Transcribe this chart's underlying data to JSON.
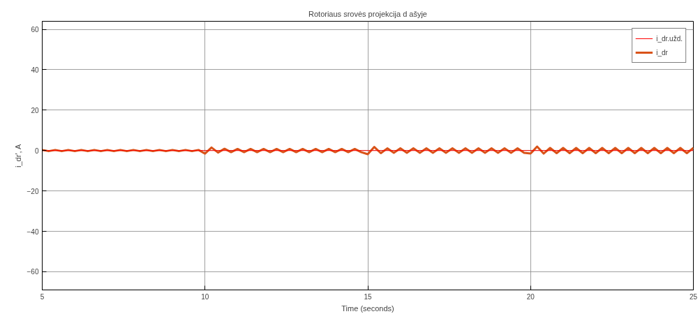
{
  "chart_data": {
    "type": "line",
    "title": "Rotoriaus srovės projekcija d ašyje",
    "xlabel": "Time (seconds)",
    "ylabel": "i_dr', A",
    "xlim": [
      5,
      25
    ],
    "xticks": [
      5,
      10,
      15,
      20,
      25
    ],
    "ylim": [
      -69,
      64
    ],
    "yticks": [
      -60,
      -40,
      -20,
      0,
      20,
      40,
      60
    ],
    "grid": true,
    "legend": "top right",
    "x": [
      5.0,
      5.2,
      5.4,
      5.6,
      5.8,
      6.0,
      6.2,
      6.4,
      6.6,
      6.8,
      7.0,
      7.2,
      7.4,
      7.6,
      7.8,
      8.0,
      8.2,
      8.4,
      8.6,
      8.8,
      9.0,
      9.2,
      9.4,
      9.6,
      9.8,
      10.0,
      10.2,
      10.4,
      10.6,
      10.8,
      11.0,
      11.2,
      11.4,
      11.6,
      11.8,
      12.0,
      12.2,
      12.4,
      12.6,
      12.8,
      13.0,
      13.2,
      13.4,
      13.6,
      13.8,
      14.0,
      14.2,
      14.4,
      14.6,
      14.8,
      15.0,
      15.2,
      15.4,
      15.6,
      15.8,
      16.0,
      16.2,
      16.4,
      16.6,
      16.8,
      17.0,
      17.2,
      17.4,
      17.6,
      17.8,
      18.0,
      18.2,
      18.4,
      18.6,
      18.8,
      19.0,
      19.2,
      19.4,
      19.6,
      19.8,
      20.0,
      20.2,
      20.4,
      20.6,
      20.8,
      21.0,
      21.2,
      21.4,
      21.6,
      21.8,
      22.0,
      22.2,
      22.4,
      22.6,
      22.8,
      23.0,
      23.2,
      23.4,
      23.6,
      23.8,
      24.0,
      24.2,
      24.4,
      24.6,
      24.8,
      25.0
    ],
    "series": [
      {
        "name": "i_dr",
        "color": "#d95319",
        "values": [
          0.3,
          -0.3,
          0.3,
          -0.3,
          0.3,
          -0.3,
          0.3,
          -0.3,
          0.3,
          -0.3,
          0.3,
          -0.3,
          0.3,
          -0.3,
          0.3,
          -0.3,
          0.3,
          -0.3,
          0.3,
          -0.3,
          0.3,
          -0.3,
          0.3,
          -0.3,
          0.3,
          -1.5,
          1.5,
          -1,
          0.9,
          -0.8,
          0.8,
          -0.8,
          0.8,
          -0.8,
          0.8,
          -0.8,
          0.8,
          -0.8,
          0.8,
          -0.8,
          0.8,
          -0.8,
          0.8,
          -0.8,
          0.8,
          -0.8,
          0.8,
          -0.8,
          0.8,
          -0.8,
          -1.8,
          1.8,
          -1.3,
          1.1,
          -1.1,
          1.1,
          -1.1,
          1.1,
          -1.1,
          1.1,
          -1.1,
          1.1,
          -1.1,
          1.1,
          -1.1,
          1.1,
          -1.1,
          1.1,
          -1.1,
          1.1,
          -1.1,
          1.1,
          -1.1,
          1.1,
          -1.1,
          -1.5,
          2,
          -1.5,
          1.3,
          -1.3,
          1.3,
          -1.3,
          1.3,
          -1.3,
          1.3,
          -1.3,
          1.3,
          -1.3,
          1.3,
          -1.3,
          1.3,
          -1.3,
          1.3,
          -1.3,
          1.3,
          -1.3,
          1.3,
          -1.3,
          1.3,
          -1.3,
          1.3
        ]
      },
      {
        "name": "i_dr.užd.",
        "color": "#ff0000",
        "x": [
          5,
          25
        ],
        "values": [
          0,
          0
        ]
      }
    ]
  }
}
